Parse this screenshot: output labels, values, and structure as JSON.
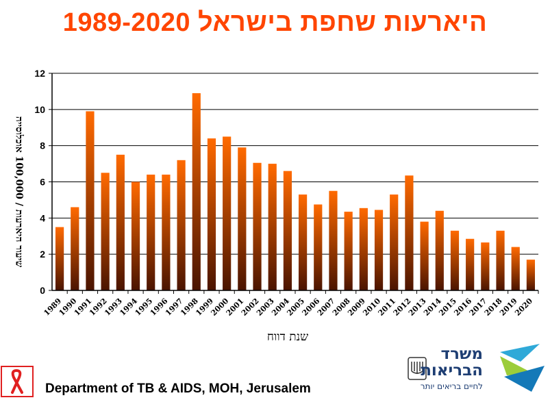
{
  "title": "היארעות שחפת בישראל  1989-2020",
  "footer": {
    "department": "Department of TB & AIDS, MOH, Jerusalem"
  },
  "logo": {
    "line1": "משרד",
    "line2": "הבריאות",
    "tagline": "לחיים בריאים יותר"
  },
  "chart_data": {
    "type": "bar",
    "title": "היארעות שחפת בישראל  1989-2020",
    "xlabel": "שנת דווח",
    "ylabel": "שיעור היארעות / 100,000 אוכלוסייה",
    "ylim": [
      0,
      12
    ],
    "yticks": [
      0,
      2,
      4,
      6,
      8,
      10,
      12
    ],
    "grid": true,
    "bar_color_top": "#ff6a00",
    "bar_color_bottom": "#4a1400",
    "categories": [
      "1989",
      "1990",
      "1991",
      "1992",
      "1993",
      "1994",
      "1995",
      "1996",
      "1997",
      "1998",
      "1999",
      "2000",
      "2001",
      "2002",
      "2003",
      "2004",
      "2005",
      "2006",
      "2007",
      "2008",
      "2009",
      "2010",
      "2011",
      "2012",
      "2013",
      "2014",
      "2015",
      "2016",
      "2017",
      "2018",
      "2019",
      "2020"
    ],
    "values": [
      3.5,
      4.6,
      9.9,
      6.5,
      7.5,
      6.0,
      6.4,
      6.4,
      7.2,
      10.9,
      8.4,
      8.5,
      7.9,
      7.05,
      7.0,
      6.6,
      5.3,
      4.75,
      5.5,
      4.35,
      4.55,
      4.45,
      5.3,
      6.35,
      3.8,
      4.4,
      3.3,
      2.85,
      2.65,
      3.3,
      2.4,
      1.7
    ]
  }
}
